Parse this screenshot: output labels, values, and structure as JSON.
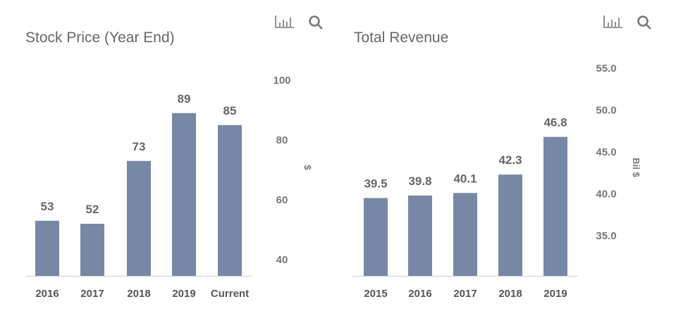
{
  "chart_data": [
    {
      "type": "bar",
      "title": "Stock Price (Year End)",
      "ylabel": "$",
      "categories": [
        "2016",
        "2017",
        "2018",
        "2019",
        "Current"
      ],
      "values": [
        53,
        52,
        73,
        89,
        85
      ],
      "data_labels": [
        "53",
        "52",
        "73",
        "89",
        "85"
      ],
      "yticks": [
        "40",
        "60",
        "80",
        "100"
      ],
      "ylim": [
        35,
        100
      ],
      "yaxis_side": "right",
      "grid": false,
      "bar_color": "#7788a6"
    },
    {
      "type": "bar",
      "title": "Total Revenue",
      "ylabel": "Bil $",
      "categories": [
        "2015",
        "2016",
        "2017",
        "2018",
        "2019"
      ],
      "values": [
        39.5,
        39.8,
        40.1,
        42.3,
        46.8
      ],
      "data_labels": [
        "39.5",
        "39.8",
        "40.1",
        "42.3",
        "46.8"
      ],
      "yticks": [
        "35.0",
        "40.0",
        "45.0",
        "50.0",
        "55.0"
      ],
      "ylim": [
        30,
        55
      ],
      "yaxis_side": "right",
      "grid": false,
      "bar_color": "#7788a6"
    }
  ],
  "toolbar": {
    "icons": [
      "bar-chart-icon",
      "search-icon"
    ]
  }
}
